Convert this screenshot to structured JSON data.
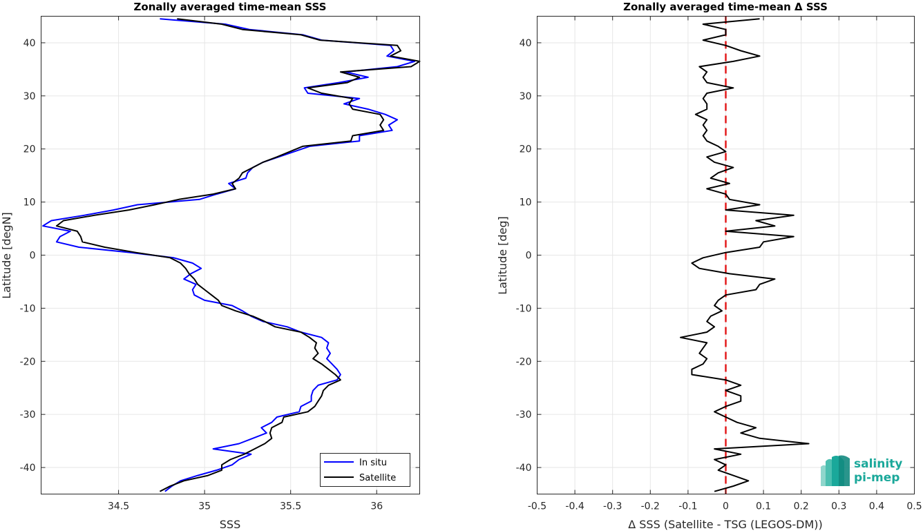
{
  "chart_data": [
    {
      "type": "line",
      "title": "Zonally averaged time-mean SSS",
      "xlabel": "SSS",
      "ylabel": "Latitude [degN]",
      "xlim": [
        34.05,
        36.25
      ],
      "ylim": [
        -45,
        45
      ],
      "xticks": [
        34.5,
        35,
        35.5,
        36
      ],
      "xtick_labels": [
        "34.5",
        "35",
        "35.5",
        "36"
      ],
      "yticks": [
        -40,
        -30,
        -20,
        -10,
        0,
        10,
        20,
        30,
        40
      ],
      "ytick_labels": [
        "-40",
        "-30",
        "-20",
        "-10",
        "0",
        "10",
        "20",
        "30",
        "40"
      ],
      "grid": true,
      "legend_position": "bottom-right",
      "series": [
        {
          "name": "In situ",
          "color": "#0000ff",
          "lat": [
            44.5,
            43.5,
            42.5,
            41.5,
            40.5,
            39.5,
            38.5,
            37.5,
            36.5,
            35.5,
            34.5,
            33.5,
            32.5,
            31.5,
            30.5,
            29.5,
            28.5,
            27.5,
            26.5,
            25.5,
            24.5,
            23.5,
            22.5,
            21.5,
            20.5,
            18.5,
            17.5,
            16.5,
            15.5,
            14.5,
            13.5,
            12.5,
            11.5,
            10.5,
            9.5,
            8.5,
            7.5,
            6.5,
            5.5,
            4.5,
            3.5,
            2.5,
            1.5,
            0.5,
            -0.5,
            -1.5,
            -2.5,
            -3.5,
            -4.5,
            -5.5,
            -6.5,
            -7.5,
            -8.5,
            -9.5,
            -10.5,
            -11.5,
            -12.5,
            -13.5,
            -14.5,
            -15.5,
            -16.5,
            -17.5,
            -18.5,
            -19.5,
            -20.5,
            -21.5,
            -22.5,
            -23.5,
            -24.5,
            -25.5,
            -26.5,
            -27.5,
            -28.5,
            -29.5,
            -30.5,
            -31.5,
            -32.5,
            -33.5,
            -34.5,
            -35.5,
            -36.5,
            -37.5,
            -38.5,
            -39.5,
            -40.5,
            -41.5,
            -42.5,
            -43.5,
            -44.5
          ],
          "values": [
            34.74,
            35.12,
            35.26,
            35.57,
            35.68,
            36.08,
            36.1,
            36.06,
            36.22,
            36.12,
            35.82,
            35.95,
            35.78,
            35.58,
            35.6,
            35.9,
            35.81,
            35.95,
            36.05,
            36.12,
            36.07,
            36.09,
            35.9,
            35.9,
            35.61,
            35.43,
            35.34,
            35.28,
            35.25,
            35.24,
            35.14,
            35.18,
            35.07,
            34.97,
            34.61,
            34.47,
            34.3,
            34.11,
            34.06,
            34.22,
            34.16,
            34.14,
            34.27,
            34.57,
            34.82,
            34.93,
            34.98,
            34.92,
            34.88,
            34.95,
            34.93,
            34.94,
            35.0,
            35.16,
            35.22,
            35.27,
            35.34,
            35.48,
            35.56,
            35.68,
            35.72,
            35.71,
            35.73,
            35.71,
            35.74,
            35.77,
            35.79,
            35.77,
            35.66,
            35.63,
            35.62,
            35.62,
            35.56,
            35.55,
            35.42,
            35.39,
            35.33,
            35.36,
            35.28,
            35.2,
            35.05,
            35.27,
            35.2,
            35.16,
            35.07,
            34.96,
            34.86,
            34.81,
            34.77
          ]
        },
        {
          "name": "Satellite",
          "color": "#000000",
          "lat": [
            44.5,
            43.5,
            42.5,
            41.5,
            40.5,
            39.5,
            38.5,
            37.5,
            36.5,
            35.5,
            34.5,
            33.5,
            32.5,
            31.5,
            30.5,
            29.5,
            28.5,
            27.5,
            26.5,
            25.5,
            24.5,
            23.5,
            22.5,
            21.5,
            20.5,
            18.5,
            17.5,
            16.5,
            15.5,
            14.5,
            13.5,
            12.5,
            11.5,
            10.5,
            9.5,
            8.5,
            7.5,
            6.5,
            5.5,
            4.5,
            3.5,
            2.5,
            1.5,
            0.5,
            -0.5,
            -1.5,
            -2.5,
            -3.5,
            -4.5,
            -5.5,
            -6.5,
            -7.5,
            -8.5,
            -9.5,
            -10.5,
            -11.5,
            -12.5,
            -13.5,
            -14.5,
            -15.5,
            -16.5,
            -17.5,
            -18.5,
            -19.5,
            -20.5,
            -21.5,
            -22.5,
            -23.5,
            -24.5,
            -25.5,
            -26.5,
            -27.5,
            -28.5,
            -29.5,
            -30.5,
            -31.5,
            -32.5,
            -33.5,
            -34.5,
            -35.5,
            -36.5,
            -37.5,
            -38.5,
            -39.5,
            -40.5,
            -41.5,
            -42.5,
            -43.5,
            -44.5
          ],
          "values": [
            34.84,
            35.1,
            35.22,
            35.56,
            35.67,
            36.12,
            36.14,
            36.08,
            36.25,
            36.2,
            35.79,
            35.9,
            35.83,
            35.6,
            35.68,
            35.86,
            35.84,
            35.86,
            36.02,
            36.04,
            36.02,
            36.04,
            35.86,
            35.85,
            35.57,
            35.42,
            35.34,
            35.28,
            35.22,
            35.2,
            35.16,
            35.18,
            35.05,
            34.85,
            34.71,
            34.56,
            34.36,
            34.18,
            34.14,
            34.26,
            34.28,
            34.29,
            34.42,
            34.6,
            34.8,
            34.86,
            34.89,
            34.91,
            34.94,
            34.96,
            35.0,
            35.04,
            35.08,
            35.1,
            35.18,
            35.28,
            35.35,
            35.41,
            35.56,
            35.61,
            35.65,
            35.64,
            35.66,
            35.63,
            35.68,
            35.72,
            35.76,
            35.79,
            35.72,
            35.69,
            35.68,
            35.66,
            35.64,
            35.6,
            35.46,
            35.45,
            35.39,
            35.38,
            35.39,
            35.35,
            35.29,
            35.23,
            35.15,
            35.1,
            35.1,
            35.02,
            34.88,
            34.8,
            34.74
          ]
        }
      ]
    },
    {
      "type": "line",
      "title": "Zonally averaged time-mean Δ SSS",
      "xlabel": "Δ SSS (Satellite - TSG (LEGOS-DM))",
      "ylabel": "Latitude [deg]",
      "xlim": [
        -0.5,
        0.5
      ],
      "ylim": [
        -45,
        45
      ],
      "xticks": [
        -0.5,
        -0.4,
        -0.3,
        -0.2,
        -0.1,
        0,
        0.1,
        0.2,
        0.3,
        0.4,
        0.5
      ],
      "xtick_labels": [
        "-0.5",
        "-0.4",
        "-0.3",
        "-0.2",
        "-0.1",
        "0",
        "0.1",
        "0.2",
        "0.3",
        "0.4",
        "0.5"
      ],
      "yticks": [
        -40,
        -30,
        -20,
        -10,
        0,
        10,
        20,
        30,
        40
      ],
      "ytick_labels": [
        "-40",
        "-30",
        "-20",
        "-10",
        "0",
        "10",
        "20",
        "30",
        "40"
      ],
      "grid": true,
      "reference_line": {
        "x": 0,
        "color": "#e31a1c",
        "style": "dashed"
      },
      "series": [
        {
          "color": "#000000",
          "lat": [
            44.5,
            43.5,
            42.5,
            41.5,
            40.5,
            39.5,
            38.5,
            37.5,
            36.5,
            35.5,
            34.5,
            33.5,
            32.5,
            31.5,
            30.5,
            29.5,
            28.5,
            27.5,
            26.5,
            25.5,
            24.5,
            23.5,
            22.5,
            21.5,
            20.5,
            19.5,
            18.5,
            17.5,
            16.5,
            15.5,
            14.5,
            13.5,
            12.5,
            11.5,
            10.5,
            9.5,
            8.5,
            7.5,
            6.5,
            5.5,
            4.5,
            3.5,
            2.5,
            1.5,
            0.5,
            -0.5,
            -1.5,
            -2.5,
            -3.5,
            -4.5,
            -5.5,
            -6.5,
            -7.5,
            -8.5,
            -9.5,
            -10.5,
            -11.5,
            -12.5,
            -13.5,
            -14.5,
            -15.5,
            -16.5,
            -17.5,
            -18.5,
            -19.5,
            -20.5,
            -21.5,
            -22.5,
            -23.5,
            -24.5,
            -25.5,
            -26.5,
            -27.5,
            -28.5,
            -29.5,
            -30.5,
            -31.5,
            -32.5,
            -33.5,
            -34.5,
            -35.5,
            -36.5,
            -37.5,
            -38.5,
            -39.5,
            -40.5,
            -41.5,
            -42.5,
            -43.5,
            -44.5
          ],
          "values": [
            0.09,
            -0.06,
            0.0,
            0.0,
            -0.06,
            0.0,
            0.04,
            0.09,
            0.02,
            -0.07,
            -0.05,
            -0.06,
            -0.05,
            0.02,
            -0.05,
            -0.06,
            -0.05,
            -0.05,
            -0.08,
            -0.05,
            -0.06,
            -0.05,
            -0.06,
            -0.05,
            -0.02,
            0.0,
            -0.05,
            -0.03,
            0.02,
            -0.02,
            -0.04,
            0.01,
            -0.05,
            0.0,
            0.01,
            0.09,
            0.0,
            0.18,
            0.08,
            0.13,
            0.0,
            0.18,
            0.1,
            0.09,
            0.0,
            -0.06,
            -0.09,
            -0.07,
            0.01,
            0.13,
            0.09,
            0.08,
            0.0,
            -0.02,
            -0.03,
            -0.01,
            -0.04,
            -0.05,
            -0.03,
            -0.05,
            -0.12,
            -0.05,
            -0.06,
            -0.07,
            -0.05,
            -0.06,
            -0.09,
            -0.09,
            0.0,
            0.04,
            0.0,
            0.04,
            0.04,
            0.0,
            -0.03,
            0.0,
            0.03,
            0.08,
            0.04,
            0.09,
            0.22,
            -0.03,
            0.04,
            -0.03,
            0.0,
            -0.02,
            0.02,
            0.06,
            0.02,
            -0.03
          ]
        }
      ]
    }
  ],
  "logo": {
    "line1": "salinity",
    "line2": "pi-mep",
    "color": "#1aa89a"
  }
}
